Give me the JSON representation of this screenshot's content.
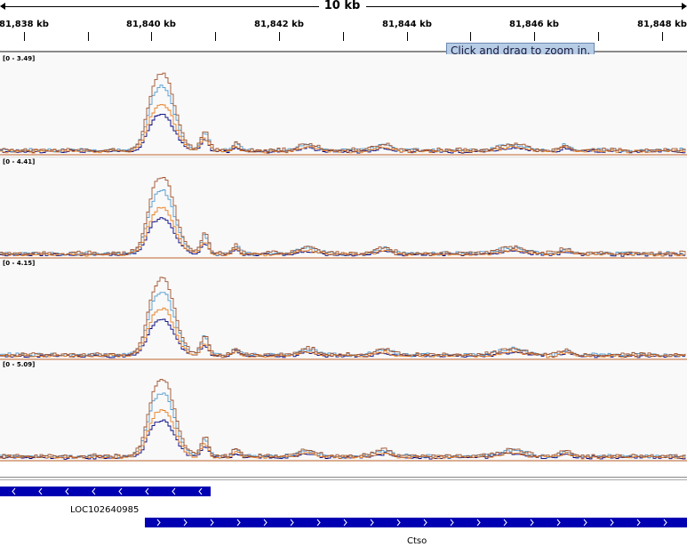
{
  "ruler": {
    "span_label": "10 kb",
    "ticks": [
      "81,838 kb",
      "81,840 kb",
      "81,842 kb",
      "81,844 kb",
      "81,846 kb",
      "81,848 kb"
    ],
    "tooltip": "Click and drag to zoom in."
  },
  "tracks": [
    {
      "range": "[0 - 3.49]"
    },
    {
      "range": "[0 - 4.41]"
    },
    {
      "range": "[0 - 4.15]"
    },
    {
      "range": "[0 - 5.09]"
    }
  ],
  "genes": [
    {
      "name": "LOC102640985",
      "strand": "-"
    },
    {
      "name": "Ctso",
      "strand": "+"
    }
  ],
  "colors": {
    "series": [
      "#00007f",
      "#4e9ad0",
      "#e87d1e",
      "#a0522d"
    ],
    "baseline": "#c0622b",
    "gene": "#0000b2",
    "tooltip_bg": "#b7cde6"
  }
}
